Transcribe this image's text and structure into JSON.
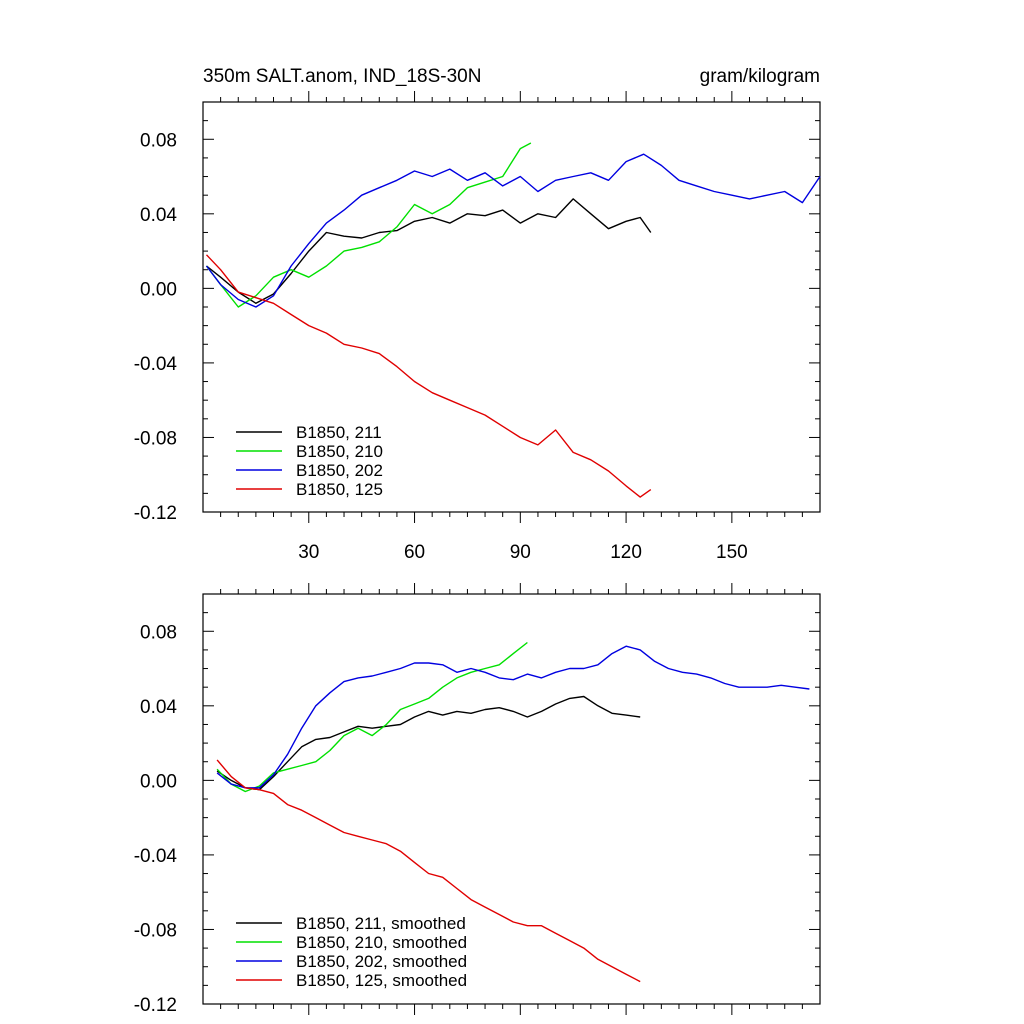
{
  "chart_data": [
    {
      "type": "line",
      "title_left": "350m SALT.anom, IND_18S-30N",
      "title_right": "gram/kilogram",
      "xlabel": "",
      "ylabel": "",
      "xlim": [
        0,
        175
      ],
      "ylim": [
        -0.12,
        0.1
      ],
      "x_ticks": [
        30,
        60,
        90,
        120,
        150
      ],
      "x_tick_labels": [
        "30",
        "60",
        "90",
        "120",
        "150"
      ],
      "y_ticks": [
        -0.12,
        -0.08,
        -0.04,
        0.0,
        0.04,
        0.08
      ],
      "y_tick_labels": [
        "-0.12",
        "-0.08",
        "-0.04",
        "0.00",
        "0.04",
        "0.08"
      ],
      "legend_position": "bottom-left",
      "series": [
        {
          "name": "B1850, 211",
          "color": "#000000",
          "x": [
            1,
            5,
            10,
            15,
            20,
            25,
            30,
            35,
            40,
            45,
            50,
            55,
            60,
            65,
            70,
            75,
            80,
            85,
            90,
            95,
            100,
            105,
            110,
            115,
            120,
            124,
            127
          ],
          "values": [
            0.012,
            0.006,
            -0.002,
            -0.008,
            -0.003,
            0.008,
            0.02,
            0.03,
            0.028,
            0.027,
            0.03,
            0.031,
            0.036,
            0.038,
            0.035,
            0.04,
            0.039,
            0.042,
            0.035,
            0.04,
            0.038,
            0.048,
            0.04,
            0.032,
            0.036,
            0.038,
            0.03
          ]
        },
        {
          "name": "B1850, 210",
          "color": "#00e000",
          "x": [
            1,
            5,
            10,
            15,
            20,
            25,
            30,
            35,
            40,
            45,
            50,
            55,
            60,
            65,
            70,
            75,
            80,
            85,
            90,
            93
          ],
          "values": [
            0.012,
            0.002,
            -0.01,
            -0.004,
            0.006,
            0.01,
            0.006,
            0.012,
            0.02,
            0.022,
            0.025,
            0.033,
            0.045,
            0.04,
            0.045,
            0.054,
            0.057,
            0.06,
            0.075,
            0.078
          ]
        },
        {
          "name": "B1850, 202",
          "color": "#0000e0",
          "x": [
            1,
            5,
            10,
            15,
            20,
            25,
            30,
            35,
            40,
            45,
            50,
            55,
            60,
            65,
            70,
            75,
            80,
            85,
            90,
            95,
            100,
            105,
            110,
            115,
            120,
            125,
            130,
            135,
            140,
            145,
            150,
            155,
            160,
            165,
            170,
            175
          ],
          "values": [
            0.012,
            0.002,
            -0.006,
            -0.01,
            -0.004,
            0.012,
            0.024,
            0.035,
            0.042,
            0.05,
            0.054,
            0.058,
            0.063,
            0.06,
            0.064,
            0.058,
            0.062,
            0.055,
            0.06,
            0.052,
            0.058,
            0.06,
            0.062,
            0.058,
            0.068,
            0.072,
            0.066,
            0.058,
            0.055,
            0.052,
            0.05,
            0.048,
            0.05,
            0.052,
            0.046,
            0.06
          ]
        },
        {
          "name": "B1850, 125",
          "color": "#e00000",
          "x": [
            1,
            5,
            10,
            15,
            20,
            25,
            30,
            35,
            40,
            45,
            50,
            55,
            60,
            65,
            70,
            75,
            80,
            85,
            90,
            95,
            100,
            105,
            110,
            115,
            120,
            124,
            127
          ],
          "values": [
            0.018,
            0.01,
            -0.002,
            -0.005,
            -0.008,
            -0.014,
            -0.02,
            -0.024,
            -0.03,
            -0.032,
            -0.035,
            -0.042,
            -0.05,
            -0.056,
            -0.06,
            -0.064,
            -0.068,
            -0.074,
            -0.08,
            -0.084,
            -0.076,
            -0.088,
            -0.092,
            -0.098,
            -0.106,
            -0.112,
            -0.108
          ]
        }
      ]
    },
    {
      "type": "line",
      "title_left": "",
      "title_right": "",
      "xlabel": "",
      "ylabel": "",
      "xlim": [
        0,
        175
      ],
      "ylim": [
        -0.12,
        0.1
      ],
      "x_ticks": [
        30,
        60,
        90,
        120,
        150
      ],
      "x_tick_labels": [],
      "y_ticks": [
        -0.12,
        -0.08,
        -0.04,
        0.0,
        0.04,
        0.08
      ],
      "y_tick_labels": [
        "-0.12",
        "-0.08",
        "-0.04",
        "0.00",
        "0.04",
        "0.08"
      ],
      "legend_position": "bottom-left",
      "series": [
        {
          "name": "B1850, 211, smoothed",
          "color": "#000000",
          "x": [
            4,
            8,
            12,
            16,
            20,
            24,
            28,
            32,
            36,
            40,
            44,
            48,
            52,
            56,
            60,
            64,
            68,
            72,
            76,
            80,
            84,
            88,
            92,
            96,
            100,
            104,
            108,
            112,
            116,
            120,
            124
          ],
          "values": [
            0.005,
            0.0,
            -0.004,
            -0.005,
            0.002,
            0.01,
            0.018,
            0.022,
            0.023,
            0.026,
            0.029,
            0.028,
            0.029,
            0.03,
            0.034,
            0.037,
            0.035,
            0.037,
            0.036,
            0.038,
            0.039,
            0.037,
            0.034,
            0.037,
            0.041,
            0.044,
            0.045,
            0.04,
            0.036,
            0.035,
            0.034
          ]
        },
        {
          "name": "B1850, 210, smoothed",
          "color": "#00e000",
          "x": [
            4,
            8,
            12,
            16,
            20,
            24,
            28,
            32,
            36,
            40,
            44,
            48,
            52,
            56,
            60,
            64,
            68,
            72,
            76,
            80,
            84,
            88,
            92
          ],
          "values": [
            0.006,
            -0.002,
            -0.006,
            -0.003,
            0.004,
            0.006,
            0.008,
            0.01,
            0.016,
            0.024,
            0.028,
            0.024,
            0.03,
            0.038,
            0.041,
            0.044,
            0.05,
            0.055,
            0.058,
            0.06,
            0.062,
            0.068,
            0.074
          ]
        },
        {
          "name": "B1850, 202, smoothed",
          "color": "#0000e0",
          "x": [
            4,
            8,
            12,
            16,
            20,
            24,
            28,
            32,
            36,
            40,
            44,
            48,
            52,
            56,
            60,
            64,
            68,
            72,
            76,
            80,
            84,
            88,
            92,
            96,
            100,
            104,
            108,
            112,
            116,
            120,
            124,
            128,
            132,
            136,
            140,
            144,
            148,
            152,
            156,
            160,
            164,
            168,
            172
          ],
          "values": [
            0.004,
            -0.002,
            -0.004,
            -0.004,
            0.003,
            0.014,
            0.028,
            0.04,
            0.047,
            0.053,
            0.055,
            0.056,
            0.058,
            0.06,
            0.063,
            0.063,
            0.062,
            0.058,
            0.06,
            0.058,
            0.055,
            0.054,
            0.057,
            0.055,
            0.058,
            0.06,
            0.06,
            0.062,
            0.068,
            0.072,
            0.07,
            0.064,
            0.06,
            0.058,
            0.057,
            0.055,
            0.052,
            0.05,
            0.05,
            0.05,
            0.051,
            0.05,
            0.049
          ]
        },
        {
          "name": "B1850, 125, smoothed",
          "color": "#e00000",
          "x": [
            4,
            8,
            12,
            16,
            20,
            24,
            28,
            32,
            36,
            40,
            44,
            48,
            52,
            56,
            60,
            64,
            68,
            72,
            76,
            80,
            84,
            88,
            92,
            96,
            100,
            104,
            108,
            112,
            116,
            120,
            124
          ],
          "values": [
            0.011,
            0.002,
            -0.004,
            -0.005,
            -0.007,
            -0.013,
            -0.016,
            -0.02,
            -0.024,
            -0.028,
            -0.03,
            -0.032,
            -0.034,
            -0.038,
            -0.044,
            -0.05,
            -0.052,
            -0.058,
            -0.064,
            -0.068,
            -0.072,
            -0.076,
            -0.078,
            -0.078,
            -0.082,
            -0.086,
            -0.09,
            -0.096,
            -0.1,
            -0.104,
            -0.108
          ]
        }
      ]
    }
  ]
}
